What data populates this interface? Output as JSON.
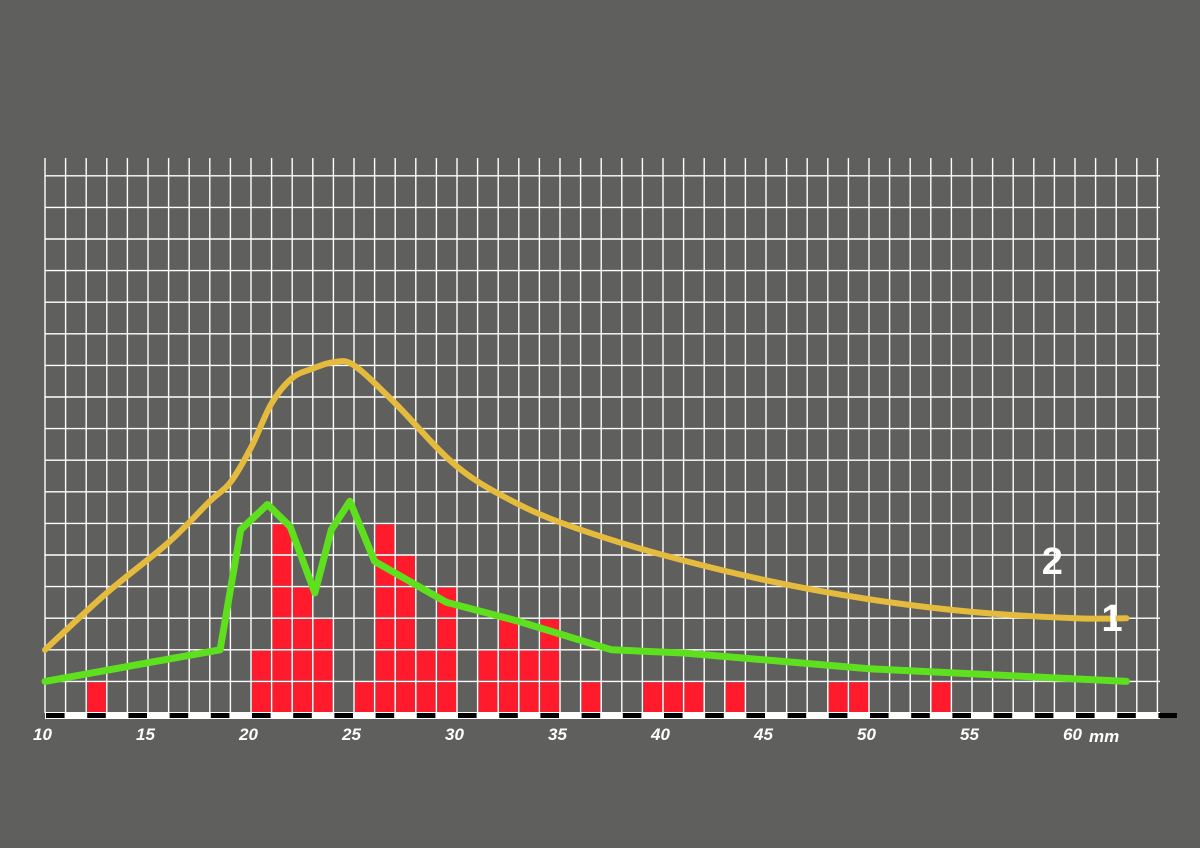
{
  "chart_data": {
    "type": "bar",
    "title": "",
    "xlabel": "",
    "ylabel": "",
    "x_unit": "mm",
    "xlim": [
      10,
      62.5
    ],
    "ylim": [
      0,
      17.5
    ],
    "x_ticks": [
      10,
      15,
      20,
      25,
      30,
      35,
      40,
      45,
      50,
      55,
      60
    ],
    "x_tick_labels": [
      "10",
      "15",
      "20",
      "25",
      "30",
      "35",
      "40",
      "45",
      "50",
      "55",
      "60"
    ],
    "grid": true,
    "bars": {
      "x": [
        12,
        20,
        21,
        22,
        23,
        25,
        26,
        27,
        28,
        29,
        31,
        32,
        33,
        34,
        36,
        39,
        40,
        41,
        43,
        48,
        49,
        53
      ],
      "values": [
        1,
        2,
        6,
        4,
        3,
        1,
        6,
        5,
        2,
        4,
        2,
        3,
        2,
        3,
        1,
        1,
        1,
        1,
        1,
        1,
        1,
        1
      ],
      "color": "#ff1a2c"
    },
    "series": [
      {
        "name": "1",
        "color": "#5fe01e",
        "x": [
          10,
          18.5,
          19.5,
          20.8,
          21.9,
          23.1,
          23.9,
          24.8,
          26,
          29.5,
          33,
          37.5,
          41,
          50,
          62.5
        ],
        "y": [
          1,
          2,
          5.8,
          6.6,
          5.9,
          3.8,
          5.8,
          6.7,
          4.8,
          3.5,
          2.9,
          2,
          1.9,
          1.4,
          1
        ]
      },
      {
        "name": "2",
        "color": "#e5bb3e",
        "x": [
          10,
          13,
          16,
          18,
          19,
          20,
          21,
          22,
          23,
          24,
          25,
          27,
          30,
          33,
          36,
          40,
          45,
          50,
          55,
          60,
          62.5
        ],
        "y": [
          2,
          3.8,
          5.4,
          6.7,
          7.3,
          8.4,
          9.8,
          10.6,
          10.9,
          11.1,
          11,
          9.8,
          7.8,
          6.6,
          5.8,
          5,
          4.2,
          3.6,
          3.2,
          3,
          3
        ]
      }
    ],
    "series_label_x": [
      61.8,
      58.9
    ],
    "series_label_y": [
      2.6,
      4.4
    ]
  }
}
